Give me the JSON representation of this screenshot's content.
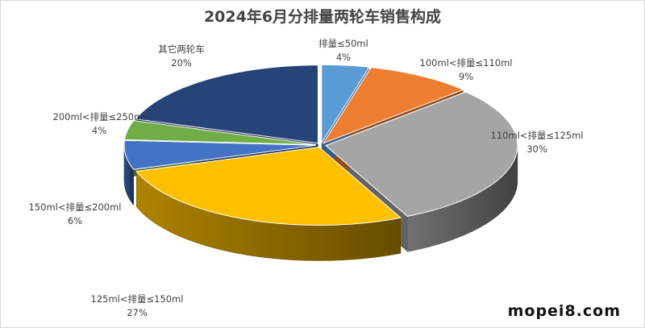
{
  "chart_data": {
    "type": "pie",
    "title": "2024年6月分排量两轮车销售构成",
    "slices": [
      {
        "label": "排量≤50ml",
        "value": 4,
        "value_label": "4%",
        "color": "#5b9bd5"
      },
      {
        "label": "100ml<排量≤110ml",
        "value": 9,
        "value_label": "9%",
        "color": "#ed7d31"
      },
      {
        "label": "110ml<排量≤125ml",
        "value": 30,
        "value_label": "30%",
        "color": "#a5a5a5"
      },
      {
        "label": "125ml<排量≤150ml",
        "value": 27,
        "value_label": "27%",
        "color": "#ffc000"
      },
      {
        "label": "150ml<排量≤200ml",
        "value": 6,
        "value_label": "6%",
        "color": "#4472c4"
      },
      {
        "label": "200ml<排量≤250ml",
        "value": 4,
        "value_label": "4%",
        "color": "#70ad47"
      },
      {
        "label": "其它两轮车",
        "value": 20,
        "value_label": "20%",
        "color": "#264478"
      }
    ],
    "style": "3d-exploded"
  },
  "watermark": "mopei8.com"
}
